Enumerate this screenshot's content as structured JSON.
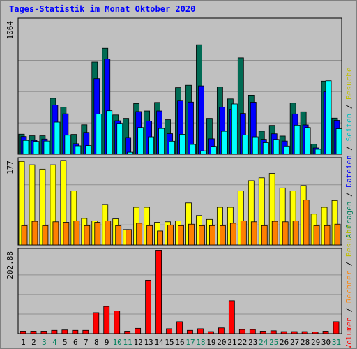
{
  "title": "Tages-Statistik im Monat Oktober 2020",
  "colors": {
    "anfragen": "#006b54",
    "dateien": "#0000ff",
    "seiten": "#00ffff",
    "besuche": "#ffff00",
    "rechner": "#ff8000",
    "volumen": "#ff0000",
    "weekend": "#00805c",
    "weekday": "#000000"
  },
  "chart_data": [
    {
      "type": "bar",
      "panel": "top",
      "ymax_label": "1064",
      "ylim": [
        0,
        1064
      ],
      "categories": [
        "1",
        "2",
        "3",
        "4",
        "5",
        "6",
        "7",
        "8",
        "9",
        "10",
        "11",
        "12",
        "13",
        "14",
        "15",
        "16",
        "17",
        "18",
        "19",
        "20",
        "21",
        "22",
        "23",
        "24",
        "25",
        "26",
        "27",
        "28",
        "29",
        "30",
        "31"
      ],
      "weekend_categories": [
        "3",
        "4",
        "10",
        "11",
        "17",
        "18",
        "24",
        "25",
        "31"
      ],
      "right_label": {
        "parts": [
          {
            "text": "Anfragen",
            "color": "#00805c"
          },
          {
            "text": " / ",
            "color": "#000000"
          },
          {
            "text": "Dateien",
            "color": "#0000ff"
          },
          {
            "text": " / ",
            "color": "#000000"
          },
          {
            "text": "Seiten",
            "color": "#00c0c0"
          },
          {
            "text": " / ",
            "color": "#000000"
          },
          {
            "text": "Besuche",
            "color": "#c0c000"
          }
        ]
      },
      "series": [
        {
          "name": "Anfragen",
          "values": [
            160,
            147,
            147,
            446,
            375,
            158,
            235,
            735,
            845,
            313,
            286,
            404,
            345,
            413,
            275,
            531,
            550,
            873,
            286,
            536,
            441,
            769,
            471,
            184,
            230,
            145,
            408,
            338,
            80,
            583,
            288
          ]
        },
        {
          "name": "Dateien",
          "values": [
            141,
            110,
            121,
            393,
            322,
            84,
            174,
            603,
            759,
            267,
            134,
            340,
            265,
            345,
            164,
            430,
            416,
            545,
            123,
            375,
            359,
            325,
            415,
            119,
            163,
            105,
            321,
            234,
            50,
            499,
            270
          ]
        },
        {
          "name": "Seiten",
          "values": [
            110,
            102,
            105,
            256,
            152,
            67,
            69,
            320,
            347,
            246,
            16,
            213,
            139,
            205,
            104,
            159,
            78,
            27,
            63,
            183,
            401,
            153,
            139,
            92,
            118,
            65,
            232,
            213,
            39,
            586,
            203
          ]
        }
      ]
    },
    {
      "type": "bar",
      "panel": "middle",
      "ymax_label": "177",
      "ylim": [
        0,
        177
      ],
      "categories": [
        "1",
        "2",
        "3",
        "4",
        "5",
        "6",
        "7",
        "8",
        "9",
        "10",
        "11",
        "12",
        "13",
        "14",
        "15",
        "16",
        "17",
        "18",
        "19",
        "20",
        "21",
        "22",
        "23",
        "24",
        "25",
        "26",
        "27",
        "28",
        "29",
        "30",
        "31"
      ],
      "series": [
        {
          "name": "Besuche",
          "values": [
            173,
            166,
            157,
            166,
            175,
            112,
            55,
            50,
            84,
            54,
            32,
            78,
            78,
            47,
            48,
            50,
            87,
            61,
            53,
            78,
            78,
            112,
            133,
            139,
            148,
            118,
            112,
            123,
            64,
            78,
            92
          ]
        },
        {
          "name": "Rechner",
          "values": [
            40,
            49,
            40,
            48,
            47,
            50,
            40,
            47,
            50,
            40,
            32,
            45,
            40,
            29,
            41,
            40,
            43,
            40,
            40,
            40,
            45,
            50,
            48,
            40,
            49,
            48,
            50,
            93,
            40,
            40,
            43
          ]
        }
      ]
    },
    {
      "type": "bar",
      "panel": "bottom",
      "ymax_label": "202.88",
      "ylim": [
        0,
        202.88
      ],
      "categories": [
        "1",
        "2",
        "3",
        "4",
        "5",
        "6",
        "7",
        "8",
        "9",
        "10",
        "11",
        "12",
        "13",
        "14",
        "15",
        "16",
        "17",
        "18",
        "19",
        "20",
        "21",
        "22",
        "23",
        "24",
        "25",
        "26",
        "27",
        "28",
        "29",
        "30",
        "31"
      ],
      "right_label": {
        "parts": [
          {
            "text": "Volumen",
            "color": "#ff0000"
          },
          {
            "text": " / ",
            "color": "#000000"
          },
          {
            "text": "Rechner",
            "color": "#ff8000"
          },
          {
            "text": " / ",
            "color": "#000000"
          },
          {
            "text": "Besuche",
            "color": "#c0c000"
          }
        ]
      },
      "series": [
        {
          "name": "Volumen",
          "values": [
            6,
            6,
            6,
            8,
            9,
            8,
            8,
            51,
            66,
            55,
            6,
            13,
            130,
            202.88,
            12,
            29,
            8,
            12,
            5,
            14,
            80,
            10,
            10,
            6,
            7,
            5,
            5,
            5,
            4,
            6,
            29
          ]
        }
      ]
    }
  ]
}
